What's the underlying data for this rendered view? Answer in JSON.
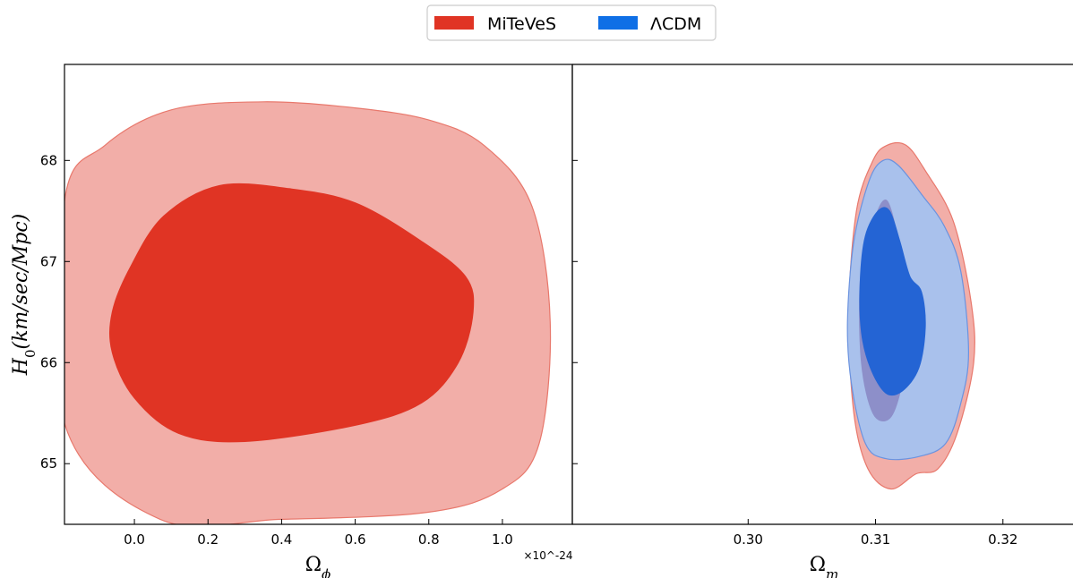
{
  "legend": {
    "items": [
      {
        "label": "MiTeVeS",
        "color": "#e03424"
      },
      {
        "label": "ΛCDM",
        "color": "#0f6fe6"
      }
    ]
  },
  "chart_data": [
    {
      "type": "contour",
      "panel": "left",
      "xlabel": "Ω_ϕ",
      "ylabel": "H_0(km/sec/Mpc)",
      "x_offset_label": "×10^-24",
      "xlim": [
        -0.19,
        1.19
      ],
      "ylim": [
        64.4,
        68.95
      ],
      "xticks": [
        0.0,
        0.2,
        0.4,
        0.6,
        0.8,
        1.0
      ],
      "xtick_labels": [
        "0.0",
        "0.2",
        "0.4",
        "0.6",
        "0.8",
        "1.0"
      ],
      "yticks": [
        65,
        66,
        67,
        68
      ],
      "ytick_labels": [
        "65",
        "66",
        "67",
        "68"
      ],
      "series": [
        {
          "name": "MiTeVeS",
          "level": "95%",
          "fill": "#f2aea8",
          "stroke": "#e8786c",
          "points": [
            [
              0.07,
              64.45
            ],
            [
              -0.19,
              65.4
            ],
            [
              -0.19,
              67.6
            ],
            [
              -0.08,
              68.15
            ],
            [
              0.1,
              68.5
            ],
            [
              0.35,
              68.58
            ],
            [
              0.6,
              68.52
            ],
            [
              0.8,
              68.4
            ],
            [
              0.95,
              68.15
            ],
            [
              1.08,
              67.55
            ],
            [
              1.13,
              66.4
            ],
            [
              1.1,
              65.2
            ],
            [
              1.0,
              64.75
            ],
            [
              0.8,
              64.52
            ],
            [
              0.4,
              64.45
            ],
            [
              0.07,
              64.45
            ]
          ]
        },
        {
          "name": "MiTeVeS",
          "level": "68%",
          "fill": "#e03424",
          "stroke": "#e03424",
          "points": [
            [
              -0.06,
              66.5
            ],
            [
              -0.01,
              66.95
            ],
            [
              0.08,
              67.45
            ],
            [
              0.23,
              67.75
            ],
            [
              0.42,
              67.72
            ],
            [
              0.6,
              67.58
            ],
            [
              0.78,
              67.2
            ],
            [
              0.9,
              66.85
            ],
            [
              0.92,
              66.5
            ],
            [
              0.88,
              66.0
            ],
            [
              0.78,
              65.6
            ],
            [
              0.6,
              65.38
            ],
            [
              0.3,
              65.22
            ],
            [
              0.12,
              65.3
            ],
            [
              0.0,
              65.65
            ],
            [
              -0.06,
              66.1
            ],
            [
              -0.06,
              66.5
            ]
          ]
        }
      ]
    },
    {
      "type": "contour",
      "panel": "right",
      "xlabel": "Ω_m",
      "xlim": [
        0.2862,
        0.3255
      ],
      "ylim": [
        64.4,
        68.95
      ],
      "xticks": [
        0.3,
        0.31,
        0.32
      ],
      "xtick_labels": [
        "0.30",
        "0.31",
        "0.32"
      ],
      "series": [
        {
          "name": "MiTeVeS",
          "level": "95%",
          "fill": "#f2aea8",
          "stroke": "#e8786c",
          "points": [
            [
              0.3109,
              68.15
            ],
            [
              0.3098,
              68.0
            ],
            [
              0.3085,
              67.5
            ],
            [
              0.3079,
              66.5
            ],
            [
              0.3083,
              65.5
            ],
            [
              0.3094,
              64.95
            ],
            [
              0.3112,
              64.75
            ],
            [
              0.3132,
              64.9
            ],
            [
              0.3149,
              64.95
            ],
            [
              0.3164,
              65.3
            ],
            [
              0.3177,
              66.0
            ],
            [
              0.3175,
              66.6
            ],
            [
              0.3161,
              67.4
            ],
            [
              0.3139,
              67.9
            ],
            [
              0.3124,
              68.15
            ],
            [
              0.3109,
              68.15
            ]
          ]
        },
        {
          "name": "ΛCDM",
          "level": "95%",
          "fill": "#a9c1ec",
          "stroke": "#6b93df",
          "points": [
            [
              0.3106,
              68.0
            ],
            [
              0.3095,
              67.8
            ],
            [
              0.3083,
              67.2
            ],
            [
              0.3078,
              66.4
            ],
            [
              0.3081,
              65.8
            ],
            [
              0.3092,
              65.2
            ],
            [
              0.3108,
              65.05
            ],
            [
              0.3134,
              65.07
            ],
            [
              0.3155,
              65.2
            ],
            [
              0.3167,
              65.6
            ],
            [
              0.3173,
              66.1
            ],
            [
              0.3167,
              66.9
            ],
            [
              0.3154,
              67.35
            ],
            [
              0.3137,
              67.65
            ],
            [
              0.3118,
              67.95
            ],
            [
              0.3106,
              68.0
            ]
          ]
        },
        {
          "name": "MiTeVeS",
          "level": "68%",
          "fill": "#8d8fc9",
          "stroke": "#8d8fc9",
          "points": [
            [
              0.3095,
              67.25
            ],
            [
              0.3088,
              66.8
            ],
            [
              0.3089,
              66.0
            ],
            [
              0.3098,
              65.5
            ],
            [
              0.3111,
              65.45
            ],
            [
              0.312,
              65.75
            ],
            [
              0.3126,
              66.3
            ],
            [
              0.3122,
              66.9
            ],
            [
              0.3109,
              67.6
            ],
            [
              0.3095,
              67.25
            ]
          ]
        },
        {
          "name": "ΛCDM",
          "level": "68%",
          "fill": "#2464d4",
          "stroke": "#2464d4",
          "points": [
            [
              0.3102,
              67.5
            ],
            [
              0.3092,
              67.25
            ],
            [
              0.3088,
              66.8
            ],
            [
              0.3089,
              66.3
            ],
            [
              0.3096,
              65.95
            ],
            [
              0.3108,
              65.7
            ],
            [
              0.3121,
              65.72
            ],
            [
              0.3134,
              65.95
            ],
            [
              0.3139,
              66.35
            ],
            [
              0.3136,
              66.7
            ],
            [
              0.3127,
              66.85
            ],
            [
              0.3119,
              67.2
            ],
            [
              0.3111,
              67.5
            ],
            [
              0.3102,
              67.5
            ]
          ]
        }
      ]
    }
  ]
}
